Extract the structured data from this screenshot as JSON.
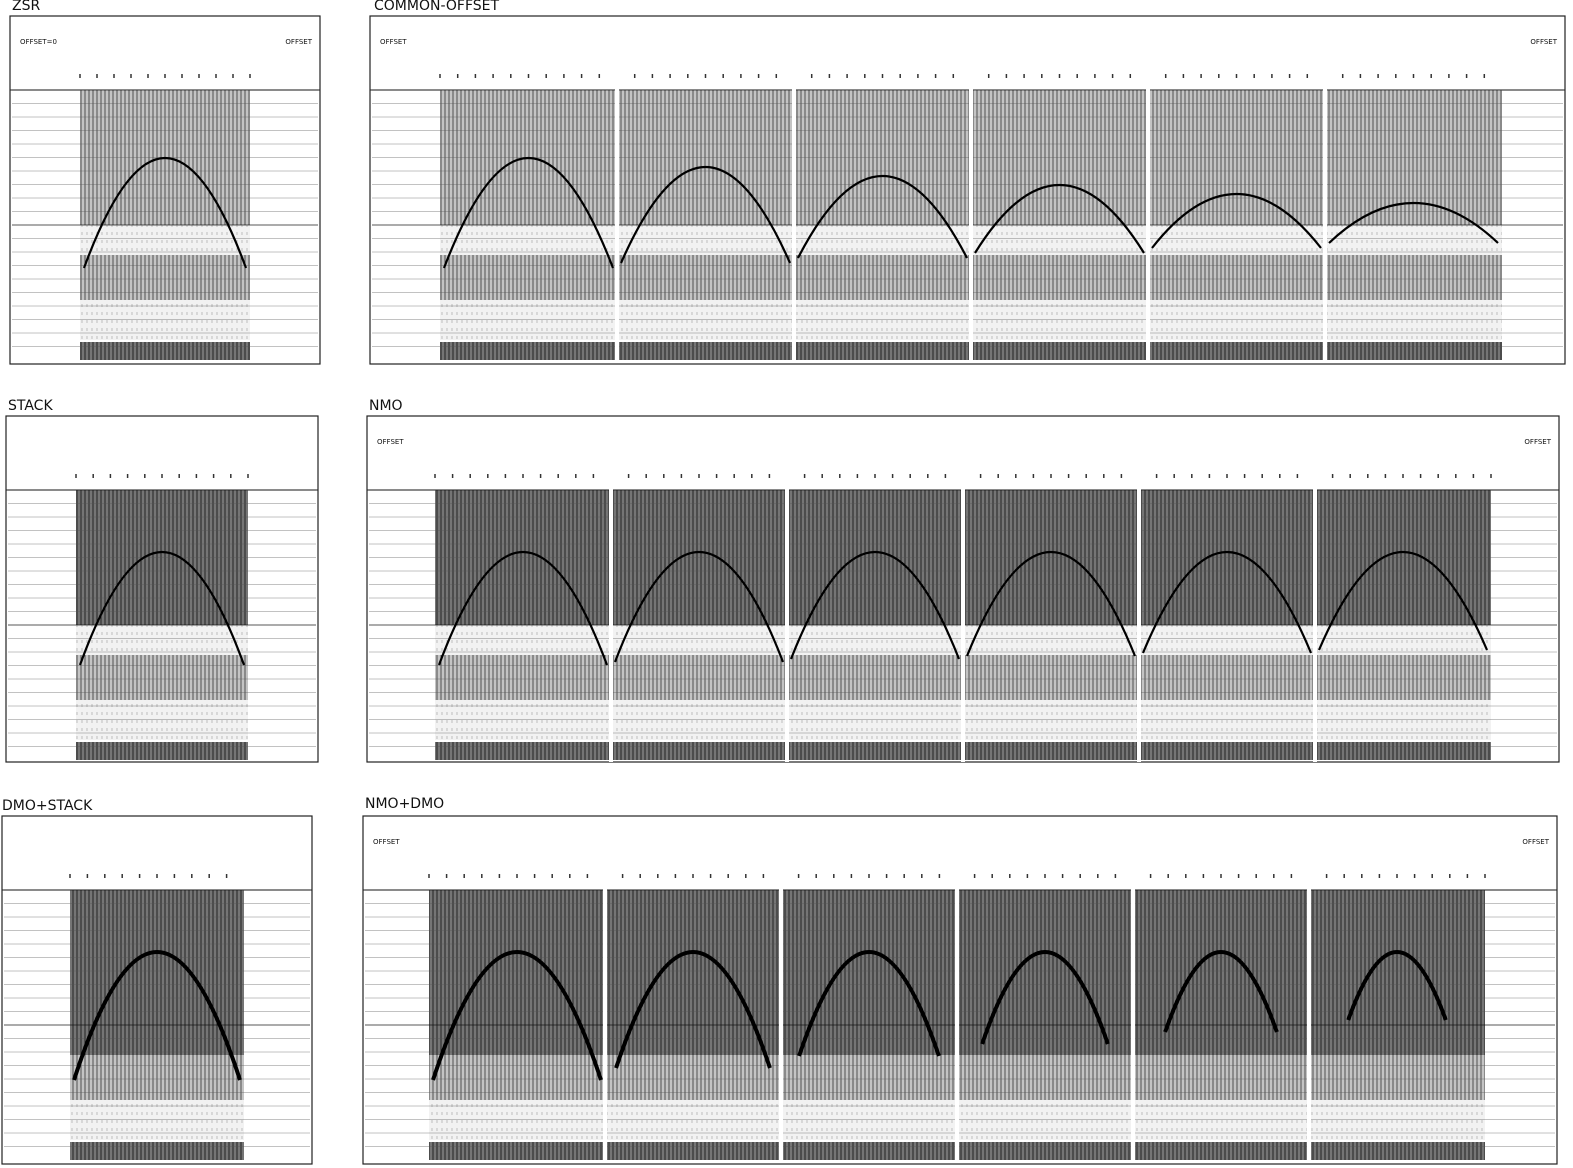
{
  "panels": [
    {
      "title": "ZSR",
      "labels": [
        "OFFSET=0",
        "OFFSET"
      ]
    },
    {
      "title": "COMMON-OFFSET",
      "labels": [
        "OFFSET",
        "OFFSET"
      ]
    },
    {
      "title": "STACK"
    },
    {
      "title": "NMO",
      "labels": [
        "OFFSET",
        "OFFSET"
      ]
    },
    {
      "title": "DMO+STACK"
    },
    {
      "title": "NMO+DMO",
      "labels": [
        "OFFSET",
        "OFFSET"
      ]
    }
  ]
}
